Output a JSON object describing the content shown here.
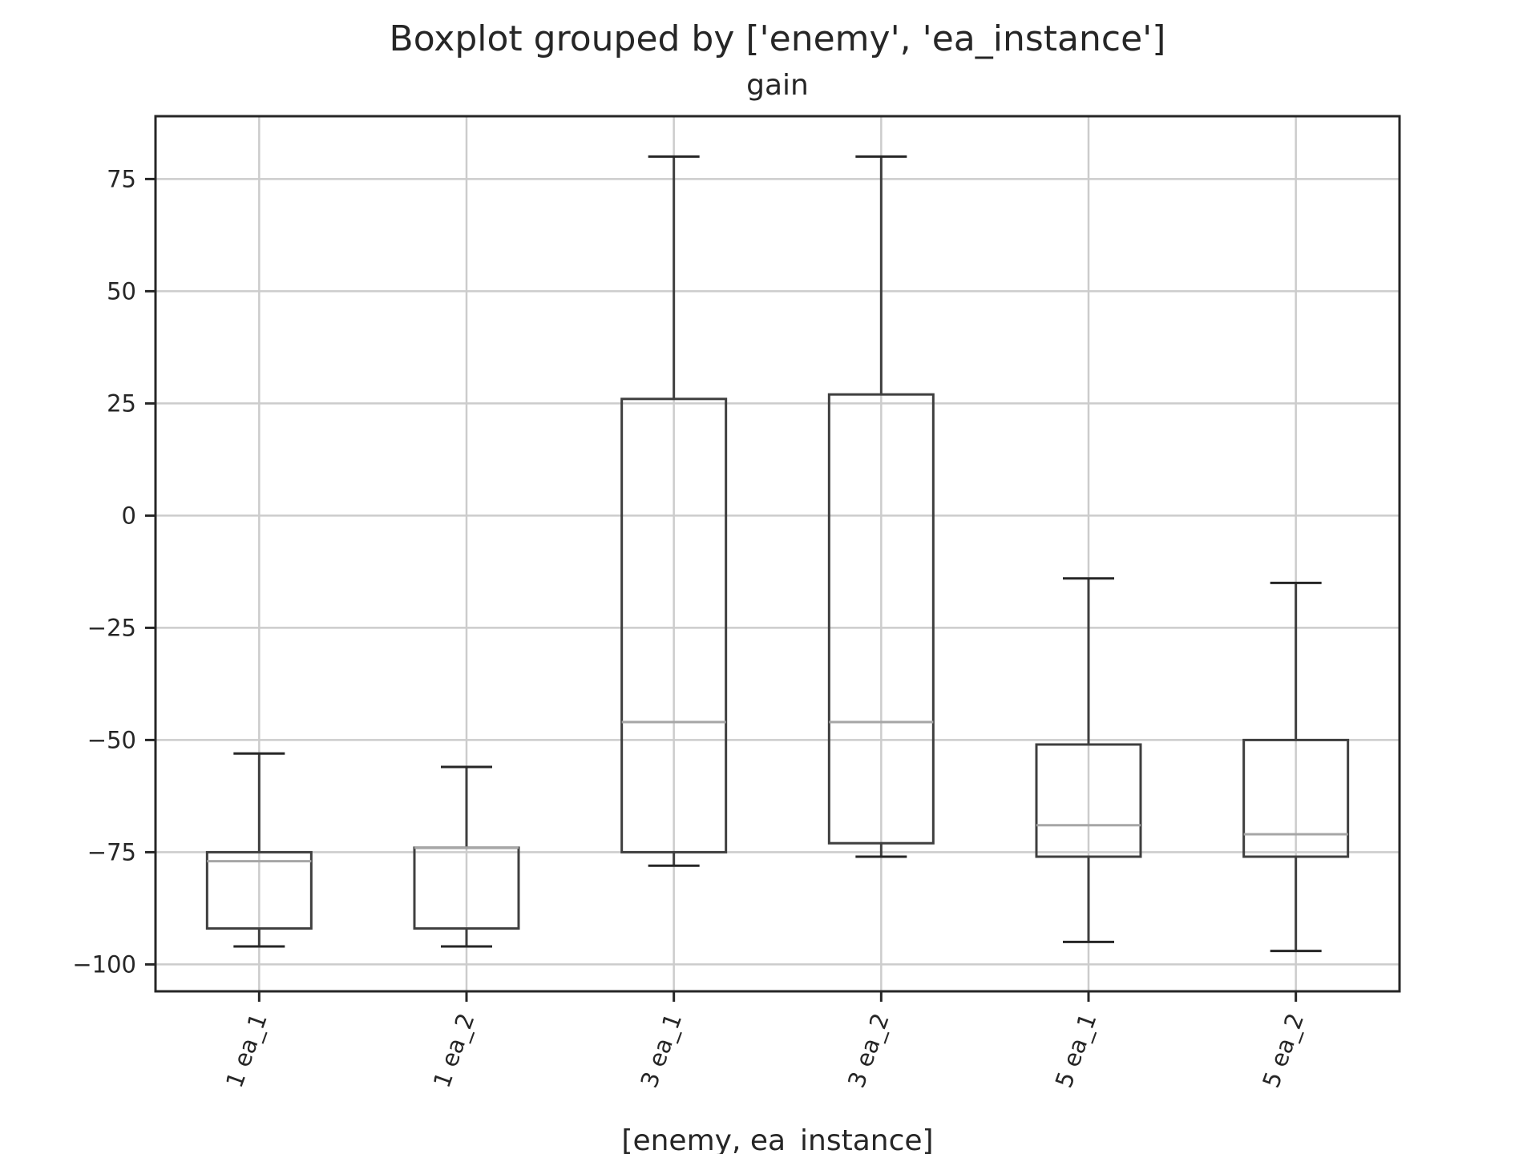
{
  "chart_data": {
    "type": "box",
    "title": "Boxplot grouped by ['enemy', 'ea_instance']",
    "subtitle": "gain",
    "xlabel": "[enemy, ea_instance]",
    "ylabel": "",
    "ylim": [
      -106,
      89
    ],
    "yticks": [
      75,
      50,
      25,
      0,
      -25,
      -50,
      -75,
      -100
    ],
    "ytick_labels": [
      "75",
      "50",
      "25",
      "0",
      "−25",
      "−50",
      "−75",
      "−100"
    ],
    "grid": true,
    "categories": [
      "1 ea_1",
      "1 ea_2",
      "3 ea_1",
      "3 ea_2",
      "5 ea_1",
      "5 ea_2"
    ],
    "boxes": [
      {
        "whisker_low": -96,
        "q1": -92,
        "median": -77,
        "q3": -75,
        "whisker_high": -53
      },
      {
        "whisker_low": -96,
        "q1": -92,
        "median": -74,
        "q3": -74,
        "whisker_high": -56
      },
      {
        "whisker_low": -78,
        "q1": -75,
        "median": -46,
        "q3": 26,
        "whisker_high": 80
      },
      {
        "whisker_low": -76,
        "q1": -73,
        "median": -46,
        "q3": 27,
        "whisker_high": 80
      },
      {
        "whisker_low": -95,
        "q1": -76,
        "median": -69,
        "q3": -51,
        "whisker_high": -14
      },
      {
        "whisker_low": -97,
        "q1": -76,
        "median": -71,
        "q3": -50,
        "whisker_high": -15
      }
    ],
    "colors": {
      "box": "#3f3f3f",
      "median": "#a6a6a6",
      "grid": "#cccccc",
      "frame": "#262626"
    }
  }
}
